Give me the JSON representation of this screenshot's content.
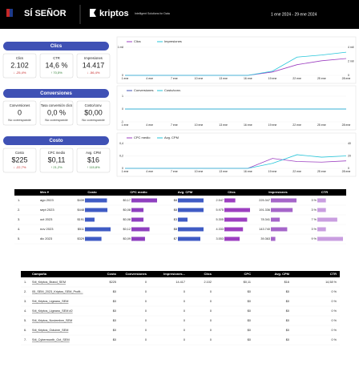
{
  "header": {
    "brand": "SÍ SEÑOR",
    "kriptos": "kriptos",
    "kriptos_sub": "Intelligent Solutions for Data",
    "date_range": "1 ene 2024 - 29 ene 2024"
  },
  "sections": [
    {
      "title": "Clics",
      "cards": [
        {
          "label": "Clics",
          "value": "2.102",
          "delta": "↓ -25,4%",
          "delta_color": "#c62828"
        },
        {
          "label": "CTR",
          "value": "14,6 %",
          "delta": "↑ 70,5%",
          "delta_color": "#2e7d32"
        },
        {
          "label": "Impresiones",
          "value": "14.417",
          "delta": "↓ -56,4%",
          "delta_color": "#c62828"
        }
      ]
    },
    {
      "title": "Conversiones",
      "cards": [
        {
          "label": "Conversiones",
          "value": "0",
          "delta": "No corresponde",
          "delta_color": "#333333"
        },
        {
          "label": "Tasa conversión clics",
          "value": "0,0 %",
          "delta": "No corresponde",
          "delta_color": "#333333"
        },
        {
          "label": "Costo/conv.",
          "value": "$0,00",
          "delta": "No corresponde",
          "delta_color": "#333333"
        }
      ]
    },
    {
      "title": "Costo",
      "cards": [
        {
          "label": "Costo",
          "value": "$225",
          "delta": "↓ -22,7%",
          "delta_color": "#c62828"
        },
        {
          "label": "CPC medio",
          "value": "$0,11",
          "delta": "↑ 21,2%",
          "delta_color": "#2e7d32"
        },
        {
          "label": "Avg. CPM",
          "value": "$16",
          "delta": "↑ 115,8%",
          "delta_color": "#2e7d32"
        }
      ]
    }
  ],
  "chart_data": [
    {
      "type": "line",
      "categories": [
        "1 ene",
        "4 ene",
        "7 ene",
        "10 ene",
        "13 ene",
        "16 ene",
        "19 ene",
        "22 ene",
        "25 ene",
        "28 ene"
      ],
      "series": [
        {
          "name": "Clics",
          "color": "#9c3fc0",
          "values": [
            0,
            0,
            0,
            0,
            0,
            0,
            120,
            380,
            520,
            600
          ]
        },
        {
          "name": "Impresiones",
          "color": "#26c6da",
          "axis": "y2",
          "values": [
            0,
            0,
            0,
            0,
            0,
            0,
            600,
            2600,
            2900,
            3300
          ]
        }
      ],
      "ylim": [
        0,
        1000
      ],
      "yticks": [
        0,
        {
          "value": 1000,
          "label": "1 mil"
        }
      ],
      "y2lim": [
        0,
        4000
      ],
      "y2ticks": [
        0,
        {
          "value": 2000,
          "label": "2 mil"
        },
        {
          "value": 4000,
          "label": "4 mil"
        }
      ]
    },
    {
      "type": "line",
      "categories": [
        "1 ene",
        "4 ene",
        "7 ene",
        "10 ene",
        "13 ene",
        "16 ene",
        "19 ene",
        "22 ene",
        "25 ene",
        "28 ene"
      ],
      "series": [
        {
          "name": "Conversiones",
          "color": "#3f51b5",
          "values": [
            0,
            0,
            0,
            0,
            0,
            0,
            0,
            0,
            0,
            0
          ]
        },
        {
          "name": "Costo/conv.",
          "color": "#26c6da",
          "values": [
            0,
            0,
            0,
            0,
            0,
            0,
            0,
            0,
            0,
            0
          ]
        }
      ],
      "ylim": [
        -1,
        1
      ],
      "yticks": [
        -1,
        0,
        1
      ]
    },
    {
      "type": "line",
      "categories": [
        "1 ene",
        "4 ene",
        "7 ene",
        "10 ene",
        "13 ene",
        "16 ene",
        "19 ene",
        "22 ene",
        "25 ene",
        "28 ene"
      ],
      "series": [
        {
          "name": "CPC medio",
          "color": "#9c3fc0",
          "values": [
            0,
            0,
            0,
            0,
            0,
            0,
            0.16,
            0.11,
            0.1,
            0.12
          ]
        },
        {
          "name": "Avg. CPM",
          "color": "#26c6da",
          "axis": "y2",
          "values": [
            0,
            0,
            0,
            0,
            0,
            0,
            8,
            22,
            18,
            20
          ]
        }
      ],
      "ylim": [
        0,
        0.4
      ],
      "yticks": [
        0,
        {
          "value": 0.2,
          "label": "0,2"
        },
        {
          "value": 0.4,
          "label": "0,4"
        }
      ],
      "y2lim": [
        0,
        40
      ],
      "y2ticks": [
        0,
        20,
        40
      ]
    }
  ],
  "monthly": {
    "columns": [
      "Mes ▾",
      "Costo",
      "CPC medio",
      "Avg. CPM",
      "Clics",
      "Impresiones",
      "CTR"
    ],
    "colors": [
      "#3f5bc4",
      "#8e3fbf",
      "#3f5bc4",
      "#9c3fc0",
      "#a565c9",
      "#c99ee0"
    ],
    "rows": [
      {
        "index": "1.",
        "month": "ago 2023",
        "cells": [
          {
            "value": 439,
            "label": "$439"
          },
          {
            "value": 0.17,
            "label": "$0,17"
          },
          {
            "value": 8,
            "label": "$8"
          },
          {
            "value": 2547,
            "label": "2.547"
          },
          {
            "value": 225347,
            "label": "225.347"
          },
          {
            "value": 3,
            "label": "3 %"
          }
        ]
      },
      {
        "index": "2.",
        "month": "sept 2023",
        "cells": [
          {
            "value": 448,
            "label": "$448"
          },
          {
            "value": 0.08,
            "label": "$0,08"
          },
          {
            "value": 8,
            "label": "$8"
          },
          {
            "value": 5975,
            "label": "5.975"
          },
          {
            "value": 191336,
            "label": "191.336"
          },
          {
            "value": 3,
            "label": "3 %"
          }
        ]
      },
      {
        "index": "3.",
        "month": "oct 2023",
        "cells": [
          {
            "value": 191,
            "label": "$191"
          },
          {
            "value": 0.08,
            "label": "$0,08"
          },
          {
            "value": 3,
            "label": "$3"
          },
          {
            "value": 5305,
            "label": "5.305"
          },
          {
            "value": 78341,
            "label": "78.341"
          },
          {
            "value": 7,
            "label": "7 %"
          }
        ]
      },
      {
        "index": "4.",
        "month": "nov 2023",
        "cells": [
          {
            "value": 511,
            "label": "$511"
          },
          {
            "value": 0.12,
            "label": "$0,12"
          },
          {
            "value": 8,
            "label": "$8"
          },
          {
            "value": 4333,
            "label": "4.333"
          },
          {
            "value": 143740,
            "label": "143.740"
          },
          {
            "value": 3,
            "label": "3 %"
          }
        ]
      },
      {
        "index": "5.",
        "month": "dic 2023",
        "cells": [
          {
            "value": 329,
            "label": "$329"
          },
          {
            "value": 0.09,
            "label": "$0,09"
          },
          {
            "value": 7,
            "label": "$7"
          },
          {
            "value": 3553,
            "label": "3.553"
          },
          {
            "value": 39363,
            "label": "39.363"
          },
          {
            "value": 9,
            "label": "9 %"
          }
        ]
      }
    ]
  },
  "campaigns": {
    "columns": [
      "Campaña",
      "Costo",
      "Conversiones",
      "Impresiones...",
      "Clics",
      "CPC",
      "Avg. CPM",
      "CTR"
    ],
    "rows": [
      [
        "1.",
        "Síti_Kriptos_Brand_SEM",
        "$225",
        "0",
        "14.417",
        "2.102",
        "$0,11",
        "$16",
        "14,58 %"
      ],
      [
        "2.",
        "05_SEM_2023_Kriptos_SEM_Profit...",
        "$0",
        "0",
        "0",
        "0",
        "$0",
        "$0",
        "0 %"
      ],
      [
        "3.",
        "Síti_Kriptos_Ligeano_SEM",
        "$0",
        "0",
        "0",
        "0",
        "$0",
        "$0",
        "0 %"
      ],
      [
        "4.",
        "Síti_Kriptos_Ligeano_SEM #2",
        "$0",
        "0",
        "0",
        "0",
        "$0",
        "$0",
        "0 %"
      ],
      [
        "5.",
        "Síti_Kriptos_Noviembre_SEM",
        "$0",
        "0",
        "0",
        "0",
        "$0",
        "$0",
        "0 %"
      ],
      [
        "6.",
        "Síti_Kriptos_Octubre_SEM",
        "$0",
        "0",
        "0",
        "0",
        "$0",
        "$0",
        "0 %"
      ],
      [
        "7.",
        "Síti_Cybermonth_Oct_SEM",
        "$0",
        "0",
        "0",
        "0",
        "$0",
        "$0",
        "0 %"
      ]
    ]
  }
}
